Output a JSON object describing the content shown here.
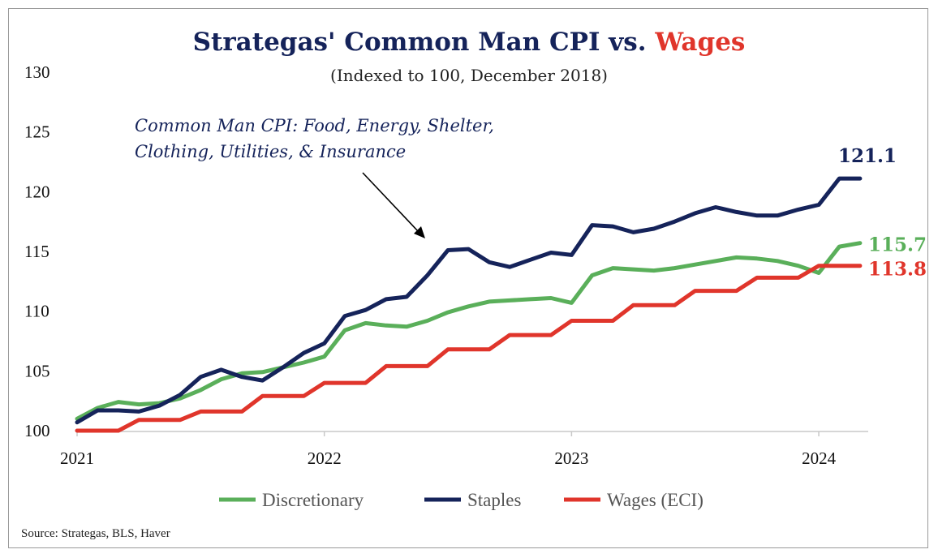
{
  "source": "Source: Strategas, BLS, Haver",
  "chart_data": {
    "type": "line",
    "title_part1": "Strategas' Common Man CPI vs. ",
    "title_part2": "Wages",
    "subtitle": "(Indexed to 100, December 2018)",
    "annotation": [
      "Common Man CPI: Food, Energy, Shelter,",
      "Clothing, Utilities, & Insurance"
    ],
    "ylim": [
      100,
      130
    ],
    "yticks": [
      100,
      105,
      110,
      115,
      120,
      125,
      130
    ],
    "xlim": [
      2021,
      2024.2
    ],
    "xticks": [
      {
        "value": 2021,
        "label": "2021"
      },
      {
        "value": 2022,
        "label": "2022"
      },
      {
        "value": 2023,
        "label": "2023"
      },
      {
        "value": 2024,
        "label": "2024"
      }
    ],
    "legend_position": "bottom",
    "grid": false,
    "series": [
      {
        "name": "Discretionary",
        "color": "#5aaf5a",
        "end_label": "115.7",
        "points": [
          [
            2021.0,
            101.0
          ],
          [
            2021.083,
            101.9
          ],
          [
            2021.167,
            102.4
          ],
          [
            2021.25,
            102.2
          ],
          [
            2021.333,
            102.3
          ],
          [
            2021.417,
            102.7
          ],
          [
            2021.5,
            103.4
          ],
          [
            2021.583,
            104.3
          ],
          [
            2021.667,
            104.8
          ],
          [
            2021.75,
            104.9
          ],
          [
            2021.833,
            105.3
          ],
          [
            2021.917,
            105.7
          ],
          [
            2022.0,
            106.2
          ],
          [
            2022.083,
            108.4
          ],
          [
            2022.167,
            109.0
          ],
          [
            2022.25,
            108.8
          ],
          [
            2022.333,
            108.7
          ],
          [
            2022.417,
            109.2
          ],
          [
            2022.5,
            109.9
          ],
          [
            2022.583,
            110.4
          ],
          [
            2022.667,
            110.8
          ],
          [
            2022.75,
            110.9
          ],
          [
            2022.833,
            111.0
          ],
          [
            2022.917,
            111.1
          ],
          [
            2023.0,
            110.7
          ],
          [
            2023.083,
            113.0
          ],
          [
            2023.167,
            113.6
          ],
          [
            2023.25,
            113.5
          ],
          [
            2023.333,
            113.4
          ],
          [
            2023.417,
            113.6
          ],
          [
            2023.5,
            113.9
          ],
          [
            2023.583,
            114.2
          ],
          [
            2023.667,
            114.5
          ],
          [
            2023.75,
            114.4
          ],
          [
            2023.833,
            114.2
          ],
          [
            2023.917,
            113.8
          ],
          [
            2024.0,
            113.2
          ],
          [
            2024.083,
            115.4
          ],
          [
            2024.167,
            115.7
          ]
        ]
      },
      {
        "name": "Staples",
        "color": "#15235a",
        "end_label": "121.1",
        "points": [
          [
            2021.0,
            100.7
          ],
          [
            2021.083,
            101.7
          ],
          [
            2021.167,
            101.7
          ],
          [
            2021.25,
            101.6
          ],
          [
            2021.333,
            102.1
          ],
          [
            2021.417,
            103.0
          ],
          [
            2021.5,
            104.5
          ],
          [
            2021.583,
            105.1
          ],
          [
            2021.667,
            104.5
          ],
          [
            2021.75,
            104.2
          ],
          [
            2021.833,
            105.3
          ],
          [
            2021.917,
            106.5
          ],
          [
            2022.0,
            107.3
          ],
          [
            2022.083,
            109.6
          ],
          [
            2022.167,
            110.1
          ],
          [
            2022.25,
            111.0
          ],
          [
            2022.333,
            111.2
          ],
          [
            2022.417,
            113.0
          ],
          [
            2022.5,
            115.1
          ],
          [
            2022.583,
            115.2
          ],
          [
            2022.667,
            114.1
          ],
          [
            2022.75,
            113.7
          ],
          [
            2022.833,
            114.3
          ],
          [
            2022.917,
            114.9
          ],
          [
            2023.0,
            114.7
          ],
          [
            2023.083,
            117.2
          ],
          [
            2023.167,
            117.1
          ],
          [
            2023.25,
            116.6
          ],
          [
            2023.333,
            116.9
          ],
          [
            2023.417,
            117.5
          ],
          [
            2023.5,
            118.2
          ],
          [
            2023.583,
            118.7
          ],
          [
            2023.667,
            118.3
          ],
          [
            2023.75,
            118.0
          ],
          [
            2023.833,
            118.0
          ],
          [
            2023.917,
            118.5
          ],
          [
            2024.0,
            118.9
          ],
          [
            2024.083,
            121.1
          ],
          [
            2024.167,
            121.1
          ]
        ]
      },
      {
        "name": "Wages (ECI)",
        "color": "#e0352b",
        "end_label": "113.8",
        "points": [
          [
            2021.0,
            100.0
          ],
          [
            2021.083,
            100.0
          ],
          [
            2021.167,
            100.0
          ],
          [
            2021.25,
            100.9
          ],
          [
            2021.333,
            100.9
          ],
          [
            2021.417,
            100.9
          ],
          [
            2021.5,
            101.6
          ],
          [
            2021.583,
            101.6
          ],
          [
            2021.667,
            101.6
          ],
          [
            2021.75,
            102.9
          ],
          [
            2021.833,
            102.9
          ],
          [
            2021.917,
            102.9
          ],
          [
            2022.0,
            104.0
          ],
          [
            2022.083,
            104.0
          ],
          [
            2022.167,
            104.0
          ],
          [
            2022.25,
            105.4
          ],
          [
            2022.333,
            105.4
          ],
          [
            2022.417,
            105.4
          ],
          [
            2022.5,
            106.8
          ],
          [
            2022.583,
            106.8
          ],
          [
            2022.667,
            106.8
          ],
          [
            2022.75,
            108.0
          ],
          [
            2022.833,
            108.0
          ],
          [
            2022.917,
            108.0
          ],
          [
            2023.0,
            109.2
          ],
          [
            2023.083,
            109.2
          ],
          [
            2023.167,
            109.2
          ],
          [
            2023.25,
            110.5
          ],
          [
            2023.333,
            110.5
          ],
          [
            2023.417,
            110.5
          ],
          [
            2023.5,
            111.7
          ],
          [
            2023.583,
            111.7
          ],
          [
            2023.667,
            111.7
          ],
          [
            2023.75,
            112.8
          ],
          [
            2023.833,
            112.8
          ],
          [
            2023.917,
            112.8
          ],
          [
            2024.0,
            113.8
          ],
          [
            2024.083,
            113.8
          ],
          [
            2024.167,
            113.8
          ]
        ]
      }
    ]
  }
}
